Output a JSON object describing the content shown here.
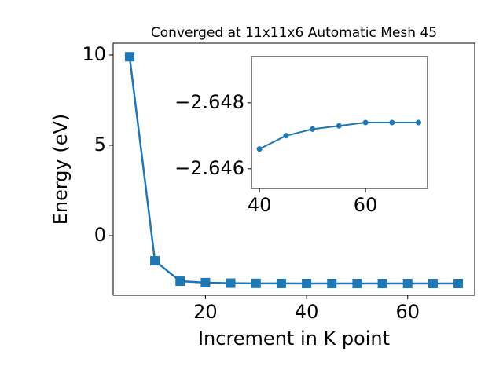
{
  "chart_data": [
    {
      "type": "line",
      "title": "Converged at 11x11x6 Automatic Mesh 45",
      "xlabel": "Increment in K point",
      "ylabel": "Energy (eV)",
      "x": [
        5,
        10,
        15,
        20,
        25,
        30,
        35,
        40,
        45,
        50,
        55,
        60,
        65,
        70
      ],
      "series": [
        {
          "color": "#1f77b4",
          "marker": "square",
          "values": [
            9.9,
            -1.39,
            -2.52,
            -2.6,
            -2.63,
            -2.64,
            -2.645,
            -2.6466,
            -2.647,
            -2.6472,
            -2.6473,
            -2.6474,
            -2.6474,
            -2.6474
          ]
        }
      ],
      "xlim": [
        1.75,
        73.25
      ],
      "ylim": [
        -3.3,
        10.65
      ],
      "xticks": [
        20,
        40,
        60
      ],
      "yticks": [
        0,
        5,
        10
      ]
    },
    {
      "type": "line",
      "x": [
        40,
        45,
        50,
        55,
        60,
        65,
        70
      ],
      "series": [
        {
          "color": "#1f77b4",
          "marker": "circle",
          "values": [
            -2.6466,
            -2.647,
            -2.6472,
            -2.6473,
            -2.6474,
            -2.6474,
            -2.6474
          ]
        }
      ],
      "xlim": [
        38.5,
        71.7
      ],
      "ylim": [
        -2.6454,
        -2.6494
      ],
      "xticks": [
        40,
        60
      ],
      "yticks": [
        {
          "value": -2.648,
          "label": "−2.648"
        },
        {
          "value": -2.646,
          "label": "−2.646"
        }
      ]
    }
  ]
}
